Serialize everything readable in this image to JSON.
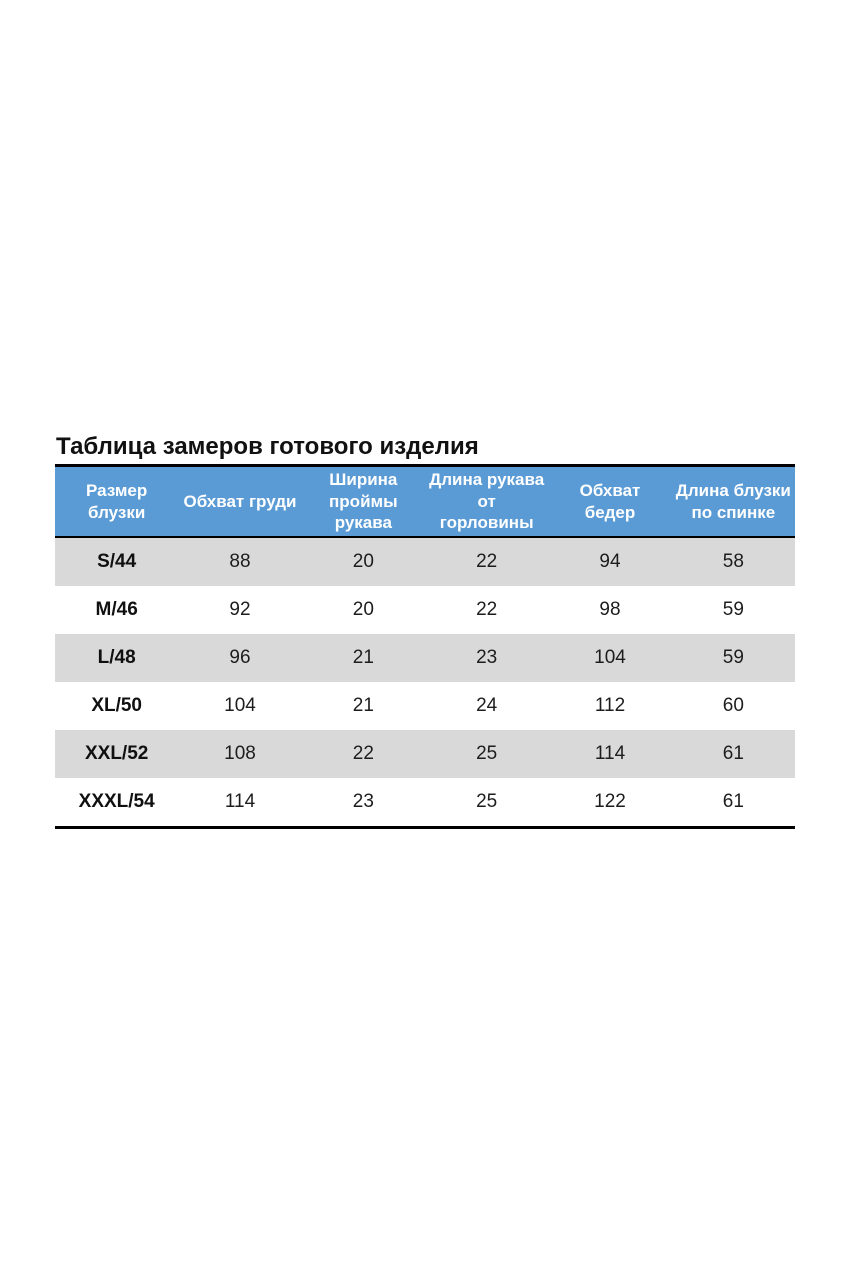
{
  "title": "Таблица замеров готового изделия",
  "colors": {
    "header_bg": "#5b9bd5",
    "header_text": "#ffffff",
    "alt_row_bg": "#d9d9d9",
    "border": "#000000"
  },
  "table": {
    "columns": [
      "Размер блузки",
      "Обхват груди",
      "Ширина проймы рукава",
      "Длина рукава от горловины",
      "Обхват бедер",
      "Длина блузки по спинке"
    ],
    "rows": [
      [
        "S/44",
        "88",
        "20",
        "22",
        "94",
        "58"
      ],
      [
        "M/46",
        "92",
        "20",
        "22",
        "98",
        "59"
      ],
      [
        "L/48",
        "96",
        "21",
        "23",
        "104",
        "59"
      ],
      [
        "XL/50",
        "104",
        "21",
        "24",
        "112",
        "60"
      ],
      [
        "XXL/52",
        "108",
        "22",
        "25",
        "114",
        "61"
      ],
      [
        "XXXL/54",
        "114",
        "23",
        "25",
        "122",
        "61"
      ]
    ]
  }
}
